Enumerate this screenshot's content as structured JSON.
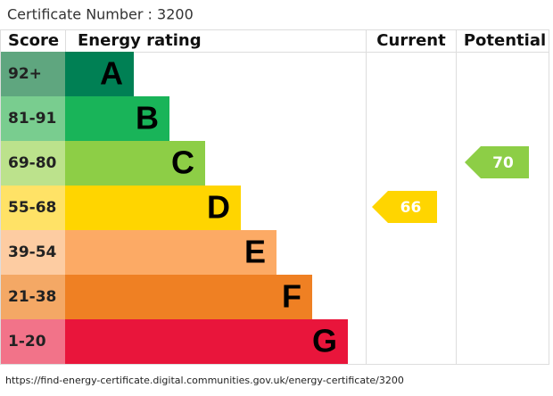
{
  "certificate": "Certificate Number : 3200",
  "headers": {
    "score": "Score",
    "rating": "Energy rating",
    "current": "Current",
    "potential": "Potential"
  },
  "bands": [
    {
      "score": "92+",
      "letter": "A",
      "color": "#008054",
      "score_color": "#5fa67f"
    },
    {
      "score": "81-91",
      "letter": "B",
      "color": "#19b459",
      "score_color": "#79cd8f"
    },
    {
      "score": "69-80",
      "letter": "C",
      "color": "#8dce46",
      "score_color": "#bce28c"
    },
    {
      "score": "55-68",
      "letter": "D",
      "color": "#ffd500",
      "score_color": "#ffe266"
    },
    {
      "score": "39-54",
      "letter": "E",
      "color": "#fcaa65",
      "score_color": "#fdcca2"
    },
    {
      "score": "21-38",
      "letter": "F",
      "color": "#ef8023",
      "score_color": "#f4a865"
    },
    {
      "score": "1-20",
      "letter": "G",
      "color": "#e9153b",
      "score_color": "#f27389"
    }
  ],
  "current": 66,
  "potential": 70,
  "url": "https://find-energy-certificate.digital.communities.gov.uk/energy-certificate/3200"
}
